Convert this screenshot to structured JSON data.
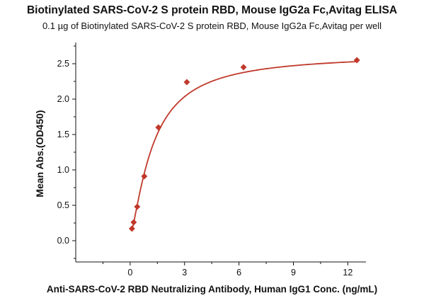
{
  "chart_data": {
    "type": "scatter",
    "title": "Biotinylated SARS-CoV-2 S protein RBD, Mouse IgG2a Fc,Avitag ELISA",
    "subtitle": "0.1 µg of Biotinylated SARS-CoV-2 S protein RBD, Mouse IgG2a Fc,Avitag per well",
    "xlabel": "Anti-SARS-CoV-2 RBD Neutralizing Antibody, Human IgG1 Conc. (ng/mL)",
    "ylabel": "Mean Abs.(OD450)",
    "xlim": [
      -3,
      13
    ],
    "ylim": [
      -0.3,
      2.8
    ],
    "x_ticks": [
      "0",
      "3",
      "6",
      "9",
      "12"
    ],
    "y_ticks": [
      "0.0",
      "0.5",
      "1.0",
      "1.5",
      "2.0",
      "2.5"
    ],
    "grid": false,
    "series": [
      {
        "x": [
          0.098,
          0.195,
          0.39,
          0.78,
          1.56,
          3.125,
          6.25,
          12.5
        ],
        "y": [
          0.17,
          0.26,
          0.48,
          0.91,
          1.6,
          2.24,
          2.45,
          2.55
        ],
        "marker": "diamond",
        "color": "#c0392b"
      }
    ],
    "fit_curve": {
      "type": "4PL",
      "color": "#c0392b"
    }
  }
}
